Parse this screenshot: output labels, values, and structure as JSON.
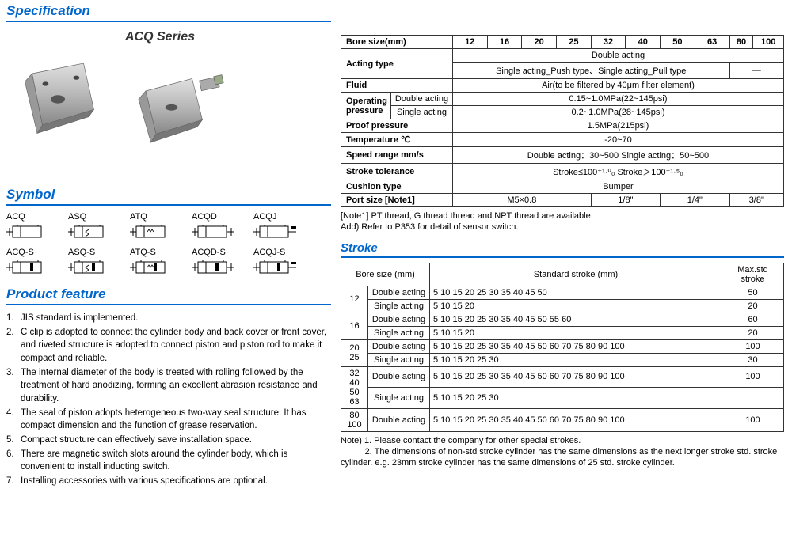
{
  "titles": {
    "specification": "Specification",
    "symbol": "Symbol",
    "productFeature": "Product feature",
    "stroke": "Stroke"
  },
  "series": "ACQ Series",
  "symbols": [
    "ACQ",
    "ASQ",
    "ATQ",
    "ACQD",
    "ACQJ",
    "ACQ-S",
    "ASQ-S",
    "ATQ-S",
    "ACQD-S",
    "ACQJ-S"
  ],
  "features": [
    "JIS standard is implemented.",
    "C clip  is adopted to connect the cylinder body and back cover or front cover, and riveted structure is adopted to connect piston and piston rod to make it compact and reliable.",
    "The internal diameter of the body is treated with rolling followed by the treatment of hard anodizing, forming an excellent abrasion resistance and durability.",
    "The seal of piston adopts heterogeneous two-way seal structure. It has compact dimension and the function of grease reservation.",
    "Compact structure can effectively save installation space.",
    "There are magnetic switch slots around the cylinder body, which is convenient to install inducting switch.",
    "Installing accessories with various specifications are optional."
  ],
  "specTable": {
    "boresHeader": "Bore size(mm)",
    "bores": [
      "12",
      "16",
      "20",
      "25",
      "32",
      "40",
      "50",
      "63",
      "80",
      "100"
    ],
    "actingType": {
      "label": "Acting type",
      "double": "Double acting",
      "single": "Single acting_Push type、Single acting_Pull type",
      "dash": "—"
    },
    "fluid": {
      "label": "Fluid",
      "value": "Air(to be filtered by 40μm filter element)"
    },
    "opPressure": {
      "label": "Operating pressure",
      "double": "Double acting",
      "doubleVal": "0.15~1.0MPa(22~145psi)",
      "single": "Single acting",
      "singleVal": "0.2~1.0MPa(28~145psi)"
    },
    "proof": {
      "label": "Proof pressure",
      "value": "1.5MPa(215psi)"
    },
    "temp": {
      "label": "Temperature  ℃",
      "value": "-20~70"
    },
    "speed": {
      "label": "Speed range  mm/s",
      "value": "Double acting：30~500    Single acting：50~500"
    },
    "strokeTol": {
      "label": "Stroke tolerance",
      "value": "Stroke≤100⁺¹·⁰₀       Stroke＞100⁺¹·⁵₀"
    },
    "cushion": {
      "label": "Cushion type",
      "value": "Bumper"
    },
    "port": {
      "label": "Port size  [Note1]",
      "m5": "M5×0.8",
      "18": "1/8\"",
      "14": "1/4\"",
      "38": "3/8\""
    }
  },
  "specNotes": [
    "[Note1] PT thread, G thread thread and NPT thread are available.",
    "Add) Refer to P353 for detail of sensor switch."
  ],
  "strokeTable": {
    "headers": {
      "bore": "Bore size (mm)",
      "std": "Standard stroke (mm)",
      "max": "Max.std stroke"
    },
    "rows": [
      {
        "bore": "12",
        "double": "5  10  15  20  25  30  35  40  45  50",
        "doubleMax": "50",
        "single": "5  10  15  20",
        "singleMax": "20"
      },
      {
        "bore": "16",
        "double": "5  10  15  20  25  30  35  40  45  50  55  60",
        "doubleMax": "60",
        "single": "5  10  15  20",
        "singleMax": "20"
      },
      {
        "bore": "20\n25",
        "double": "5  10  15  20  25  30  35  40  45  50  60  70  75  80  90  100",
        "doubleMax": "100",
        "single": "5  10  15  20  25  30",
        "singleMax": "30"
      },
      {
        "bore": "32\n40\n50\n63",
        "double": "5  10  15  20  25  30  35  40  45  50  60  70  75  80  90  100",
        "doubleMax": "100",
        "single": "5  10  15  20  25  30",
        "singleMax": ""
      },
      {
        "bore": "80\n100",
        "double": "5  10  15  20  25  30  35  40  45  50  60  70  75  80  90  100",
        "doubleMax": "100"
      }
    ],
    "actLabels": {
      "double": "Double acting",
      "single": "Single acting"
    }
  },
  "strokeNotes": [
    "Note) 1. Please contact the company for other special strokes.",
    "          2. The dimensions of non-std stroke cylinder has the same dimensions as the next longer stroke std. stroke cylinder. e.g. 23mm stroke cylinder has the same dimensions of 25 std. stroke cylinder."
  ]
}
